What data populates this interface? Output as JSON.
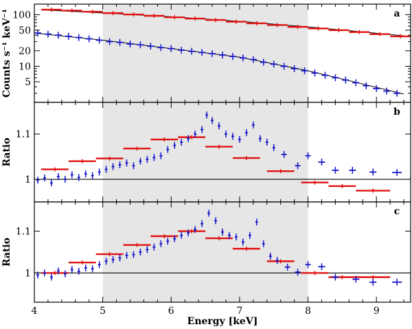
{
  "chart_data": {
    "type": "scatter",
    "title": "",
    "xlabel": "Energy [keV]",
    "xlim": [
      4,
      9.5
    ],
    "xticks": [
      "4",
      "5",
      "6",
      "7",
      "8",
      "9"
    ],
    "shaded_region": [
      5,
      8
    ],
    "colors": {
      "series_a": "#e01010",
      "series_b": "#1414c8",
      "model": "#000000",
      "shade": "#e6e6e6"
    },
    "panels": [
      {
        "label": "a",
        "ylabel": "Counts s⁻¹ keV⁻¹",
        "yscale": "log",
        "ylim": [
          2,
          160
        ],
        "yticks": [
          "5",
          "10",
          "20",
          "50",
          "100"
        ],
        "series": [
          {
            "name": "red",
            "points": [
              [
                4.25,
                125,
                0.15
              ],
              [
                4.55,
                120,
                0.15
              ],
              [
                4.85,
                114,
                0.15
              ],
              [
                5.15,
                107,
                0.15
              ],
              [
                5.45,
                101,
                0.15
              ],
              [
                5.75,
                95,
                0.15
              ],
              [
                6.05,
                89,
                0.15
              ],
              [
                6.35,
                84,
                0.15
              ],
              [
                6.65,
                79,
                0.15
              ],
              [
                6.95,
                73,
                0.15
              ],
              [
                7.25,
                68,
                0.15
              ],
              [
                7.55,
                63,
                0.15
              ],
              [
                7.85,
                58,
                0.15
              ],
              [
                8.15,
                54,
                0.15
              ],
              [
                8.45,
                50,
                0.15
              ],
              [
                8.75,
                46,
                0.15
              ],
              [
                9.05,
                42,
                0.15
              ],
              [
                9.35,
                38,
                0.15
              ]
            ]
          },
          {
            "name": "blue",
            "points": [
              [
                4.05,
                44,
                0.05
              ],
              [
                4.2,
                42,
                0.05
              ],
              [
                4.35,
                40,
                0.05
              ],
              [
                4.5,
                38,
                0.05
              ],
              [
                4.65,
                36,
                0.05
              ],
              [
                4.8,
                34,
                0.05
              ],
              [
                4.95,
                32,
                0.05
              ],
              [
                5.1,
                30,
                0.05
              ],
              [
                5.25,
                29,
                0.05
              ],
              [
                5.4,
                27,
                0.05
              ],
              [
                5.55,
                26,
                0.05
              ],
              [
                5.7,
                24.5,
                0.05
              ],
              [
                5.85,
                23,
                0.05
              ],
              [
                6,
                22,
                0.05
              ],
              [
                6.15,
                20.5,
                0.05
              ],
              [
                6.3,
                19.5,
                0.05
              ],
              [
                6.45,
                18.5,
                0.05
              ],
              [
                6.6,
                17.5,
                0.05
              ],
              [
                6.75,
                16.5,
                0.05
              ],
              [
                6.9,
                15.5,
                0.05
              ],
              [
                7.05,
                14.5,
                0.05
              ],
              [
                7.2,
                13.5,
                0.05
              ],
              [
                7.35,
                12,
                0.05
              ],
              [
                7.5,
                11,
                0.05
              ],
              [
                7.65,
                10,
                0.05
              ],
              [
                7.8,
                9,
                0.05
              ],
              [
                7.95,
                8.2,
                0.05
              ],
              [
                8.1,
                7.4,
                0.05
              ],
              [
                8.25,
                6.7,
                0.05
              ],
              [
                8.4,
                6,
                0.05
              ],
              [
                8.55,
                5.4,
                0.05
              ],
              [
                8.7,
                4.8,
                0.05
              ],
              [
                8.85,
                4.2,
                0.05
              ],
              [
                9,
                3.7,
                0.05
              ],
              [
                9.15,
                3.3,
                0.05
              ],
              [
                9.3,
                3,
                0.05
              ]
            ]
          }
        ],
        "models": [
          {
            "name": "model-red",
            "x": [
              4.1,
              5,
              6,
              7,
              8,
              9.4
            ],
            "y": [
              124,
              108,
              91,
              74,
              58,
              39
            ]
          },
          {
            "name": "model-blue",
            "x": [
              4,
              5,
              6,
              7,
              8,
              9.4
            ],
            "y": [
              44,
              32,
              22,
              15,
              8.2,
              2.9
            ]
          }
        ]
      },
      {
        "label": "b",
        "ylabel": "Ratio",
        "yscale": "linear",
        "ylim": [
          0.95,
          1.17
        ],
        "yticks": [
          "1",
          "1.1"
        ],
        "reference_line": 1,
        "series": [
          {
            "name": "red",
            "points": [
              [
                4.3,
                1.022,
                0.2
              ],
              [
                4.7,
                1.04,
                0.2
              ],
              [
                5.1,
                1.046,
                0.2
              ],
              [
                5.5,
                1.068,
                0.2
              ],
              [
                5.9,
                1.088,
                0.2
              ],
              [
                6.3,
                1.093,
                0.2
              ],
              [
                6.7,
                1.072,
                0.2
              ],
              [
                7.1,
                1.047,
                0.2
              ],
              [
                7.6,
                1.018,
                0.2
              ],
              [
                8.1,
                0.993,
                0.2
              ],
              [
                8.5,
                0.985,
                0.2
              ],
              [
                8.95,
                0.975,
                0.25
              ]
            ]
          },
          {
            "name": "blue",
            "points": [
              [
                4.05,
                0.998,
                0.02
              ],
              [
                4.15,
                1.003,
                0.02
              ],
              [
                4.25,
                0.992,
                0.02
              ],
              [
                4.35,
                1.006,
                0.02
              ],
              [
                4.45,
                1,
                0.02
              ],
              [
                4.55,
                1.01,
                0.02
              ],
              [
                4.65,
                1.004,
                0.02
              ],
              [
                4.75,
                1.012,
                0.02
              ],
              [
                4.85,
                1.008,
                0.02
              ],
              [
                4.95,
                1.016,
                0.02
              ],
              [
                5.05,
                1.022,
                0.02
              ],
              [
                5.15,
                1.028,
                0.02
              ],
              [
                5.25,
                1.032,
                0.02
              ],
              [
                5.35,
                1.036,
                0.02
              ],
              [
                5.45,
                1.03,
                0.02
              ],
              [
                5.55,
                1.04,
                0.02
              ],
              [
                5.65,
                1.044,
                0.02
              ],
              [
                5.75,
                1.048,
                0.02
              ],
              [
                5.85,
                1.052,
                0.02
              ],
              [
                5.95,
                1.066,
                0.02
              ],
              [
                6.05,
                1.075,
                0.02
              ],
              [
                6.15,
                1.082,
                0.02
              ],
              [
                6.25,
                1.09,
                0.02
              ],
              [
                6.35,
                1.1,
                0.02
              ],
              [
                6.45,
                1.11,
                0.02
              ],
              [
                6.52,
                1.142,
                0.02
              ],
              [
                6.6,
                1.13,
                0.02
              ],
              [
                6.7,
                1.118,
                0.02
              ],
              [
                6.8,
                1.1,
                0.02
              ],
              [
                6.9,
                1.095,
                0.02
              ],
              [
                7,
                1.088,
                0.02
              ],
              [
                7.1,
                1.103,
                0.02
              ],
              [
                7.2,
                1.12,
                0.02
              ],
              [
                7.3,
                1.09,
                0.02
              ],
              [
                7.4,
                1.082,
                0.02
              ],
              [
                7.5,
                1.07,
                0.02
              ],
              [
                7.65,
                1.055,
                0.04
              ],
              [
                7.85,
                1.03,
                0.04
              ],
              [
                8,
                1.052,
                0.04
              ],
              [
                8.2,
                1.038,
                0.05
              ],
              [
                8.4,
                1.02,
                0.05
              ],
              [
                8.65,
                1.02,
                0.05
              ],
              [
                8.95,
                1.016,
                0.05
              ],
              [
                9.3,
                1.015,
                0.07
              ]
            ]
          }
        ]
      },
      {
        "label": "c",
        "ylabel": "Ratio",
        "yscale": "linear",
        "ylim": [
          0.93,
          1.17
        ],
        "yticks": [
          "1",
          "1.1"
        ],
        "reference_line": 1,
        "series": [
          {
            "name": "red",
            "points": [
              [
                4.3,
                1,
                0.2
              ],
              [
                4.7,
                1.025,
                0.2
              ],
              [
                5.1,
                1.045,
                0.2
              ],
              [
                5.5,
                1.067,
                0.2
              ],
              [
                5.9,
                1.088,
                0.2
              ],
              [
                6.3,
                1.1,
                0.2
              ],
              [
                6.7,
                1.083,
                0.2
              ],
              [
                7.1,
                1.058,
                0.2
              ],
              [
                7.6,
                1.028,
                0.2
              ],
              [
                8.1,
                1,
                0.2
              ],
              [
                8.5,
                0.99,
                0.2
              ],
              [
                8.95,
                0.99,
                0.25
              ]
            ]
          },
          {
            "name": "blue",
            "points": [
              [
                4.05,
                0.995,
                0.02
              ],
              [
                4.15,
                1,
                0.02
              ],
              [
                4.25,
                0.99,
                0.02
              ],
              [
                4.35,
                1.005,
                0.02
              ],
              [
                4.45,
                0.998,
                0.02
              ],
              [
                4.55,
                1.008,
                0.02
              ],
              [
                4.65,
                1.004,
                0.02
              ],
              [
                4.75,
                1.012,
                0.02
              ],
              [
                4.85,
                1.01,
                0.02
              ],
              [
                4.95,
                1.02,
                0.02
              ],
              [
                5.05,
                1.028,
                0.02
              ],
              [
                5.15,
                1.032,
                0.02
              ],
              [
                5.25,
                1.036,
                0.02
              ],
              [
                5.35,
                1.042,
                0.02
              ],
              [
                5.45,
                1.044,
                0.02
              ],
              [
                5.55,
                1.05,
                0.02
              ],
              [
                5.65,
                1.056,
                0.02
              ],
              [
                5.75,
                1.062,
                0.02
              ],
              [
                5.85,
                1.07,
                0.02
              ],
              [
                5.95,
                1.076,
                0.02
              ],
              [
                6.05,
                1.082,
                0.02
              ],
              [
                6.15,
                1.09,
                0.02
              ],
              [
                6.25,
                1.096,
                0.02
              ],
              [
                6.35,
                1.104,
                0.02
              ],
              [
                6.45,
                1.118,
                0.02
              ],
              [
                6.55,
                1.143,
                0.02
              ],
              [
                6.65,
                1.125,
                0.02
              ],
              [
                6.75,
                1.098,
                0.02
              ],
              [
                6.85,
                1.09,
                0.02
              ],
              [
                6.95,
                1.086,
                0.02
              ],
              [
                7.05,
                1.074,
                0.02
              ],
              [
                7.15,
                1.09,
                0.02
              ],
              [
                7.25,
                1.122,
                0.02
              ],
              [
                7.35,
                1.07,
                0.02
              ],
              [
                7.45,
                1.04,
                0.02
              ],
              [
                7.55,
                1.03,
                0.02
              ],
              [
                7.7,
                1.014,
                0.04
              ],
              [
                7.85,
                1.002,
                0.04
              ],
              [
                8,
                1.02,
                0.04
              ],
              [
                8.2,
                1.015,
                0.05
              ],
              [
                8.4,
                0.99,
                0.05
              ],
              [
                8.7,
                0.985,
                0.05
              ],
              [
                8.95,
                0.978,
                0.05
              ],
              [
                9.3,
                0.978,
                0.07
              ]
            ]
          }
        ]
      }
    ]
  }
}
